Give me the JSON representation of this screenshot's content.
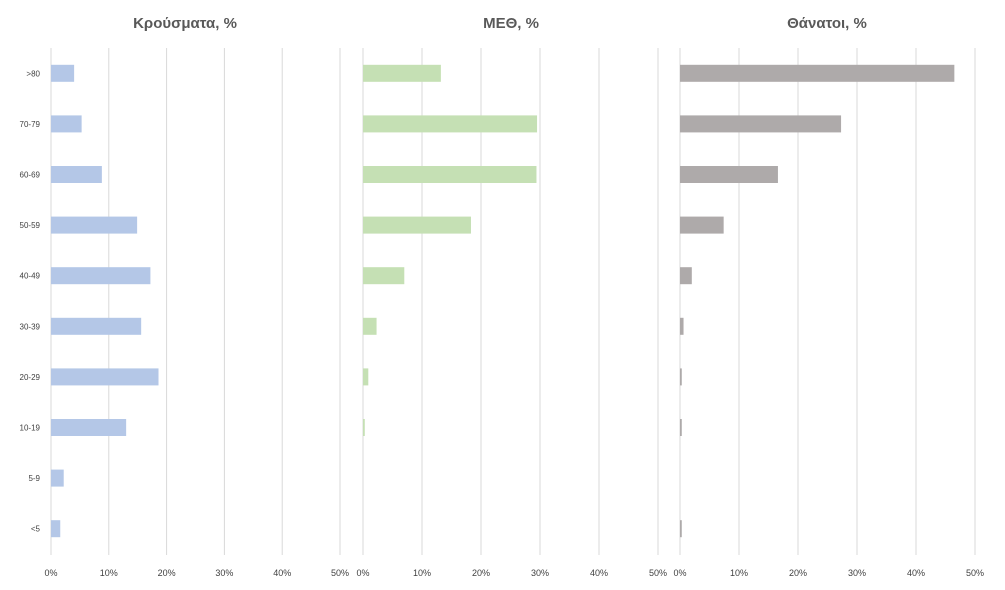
{
  "chart_data": [
    {
      "type": "bar",
      "orientation": "horizontal",
      "title": "Κρούσματα, %",
      "categories": [
        ">80",
        "70-79",
        "60-69",
        "50-59",
        "40-49",
        "30-39",
        "20-29",
        "10-19",
        "5-9",
        "<5"
      ],
      "values": [
        4.0,
        5.3,
        8.8,
        14.9,
        17.2,
        15.6,
        18.6,
        13.0,
        2.2,
        1.6
      ],
      "xlim": [
        0,
        50
      ],
      "tick_labels": [
        "0%",
        "10%",
        "20%",
        "30%",
        "40%",
        "50%"
      ],
      "color": "#b4c7e7",
      "grid": true
    },
    {
      "type": "bar",
      "orientation": "horizontal",
      "title": "ΜΕΘ, %",
      "categories": [
        ">80",
        "70-79",
        "60-69",
        "50-59",
        "40-49",
        "30-39",
        "20-29",
        "10-19",
        "5-9",
        "<5"
      ],
      "values": [
        13.2,
        29.5,
        29.4,
        18.3,
        7.0,
        2.3,
        0.9,
        0.3,
        0,
        0
      ],
      "xlim": [
        0,
        50
      ],
      "tick_labels": [
        "0%",
        "10%",
        "20%",
        "30%",
        "40%",
        "50%"
      ],
      "color": "#c5e0b4",
      "grid": true
    },
    {
      "type": "bar",
      "orientation": "horizontal",
      "title": "Θάνατοι, %",
      "categories": [
        ">80",
        "70-79",
        "60-69",
        "50-59",
        "40-49",
        "30-39",
        "20-29",
        "10-19",
        "5-9",
        "<5"
      ],
      "values": [
        46.5,
        27.3,
        16.6,
        7.4,
        2.0,
        0.6,
        0.3,
        0.3,
        0,
        0.3
      ],
      "xlim": [
        0,
        50
      ],
      "tick_labels": [
        "0%",
        "10%",
        "20%",
        "30%",
        "40%",
        "50%"
      ],
      "color": "#aeaaaa",
      "grid": true
    }
  ]
}
